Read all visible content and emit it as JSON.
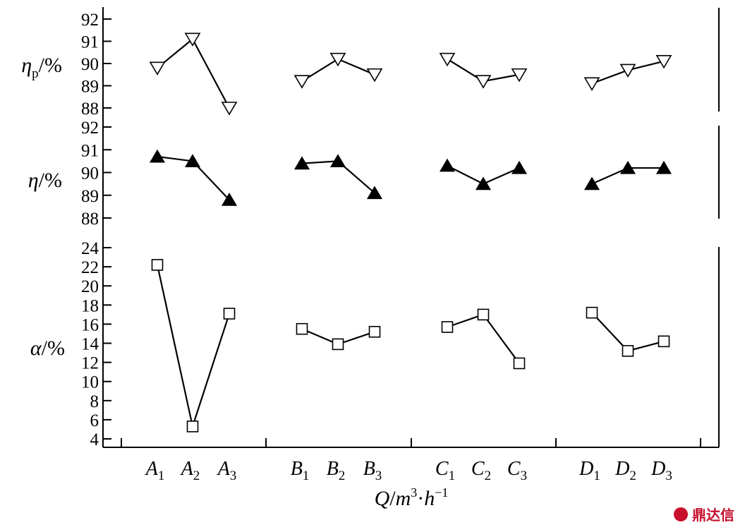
{
  "chart_data": [
    {
      "type": "line",
      "panel": "top",
      "ylabel": {
        "main": "η",
        "sub": "p",
        "tail": "/%"
      },
      "ylim": [
        88,
        92
      ],
      "yticks": [
        88,
        89,
        90,
        91,
        92
      ],
      "marker": "triangle-down-open",
      "series": [
        {
          "group": "A",
          "values": [
            89.8,
            91.1,
            88.0
          ]
        },
        {
          "group": "B",
          "values": [
            89.2,
            90.2,
            89.5
          ]
        },
        {
          "group": "C",
          "values": [
            90.2,
            89.2,
            89.5
          ]
        },
        {
          "group": "D",
          "values": [
            89.1,
            89.7,
            90.1
          ]
        }
      ]
    },
    {
      "type": "line",
      "panel": "middle",
      "ylabel": {
        "main": "η",
        "sub": "",
        "tail": "/%"
      },
      "ylim": [
        88,
        92
      ],
      "yticks": [
        88,
        89,
        90,
        91,
        92
      ],
      "marker": "triangle-up-filled",
      "series": [
        {
          "group": "A",
          "values": [
            90.7,
            90.5,
            88.8
          ]
        },
        {
          "group": "B",
          "values": [
            90.4,
            90.5,
            89.1
          ]
        },
        {
          "group": "C",
          "values": [
            90.3,
            89.5,
            90.2
          ]
        },
        {
          "group": "D",
          "values": [
            89.5,
            90.2,
            90.2
          ]
        }
      ]
    },
    {
      "type": "line",
      "panel": "bottom",
      "ylabel": {
        "main": "α",
        "sub": "",
        "tail": "/%"
      },
      "ylim": [
        4,
        24
      ],
      "yticks": [
        4,
        6,
        8,
        10,
        12,
        14,
        16,
        18,
        20,
        22,
        24
      ],
      "marker": "square-open",
      "series": [
        {
          "group": "A",
          "values": [
            22.2,
            5.3,
            17.1
          ]
        },
        {
          "group": "B",
          "values": [
            15.5,
            13.9,
            15.2
          ]
        },
        {
          "group": "C",
          "values": [
            15.7,
            17.0,
            11.9
          ]
        },
        {
          "group": "D",
          "values": [
            17.2,
            13.2,
            14.2
          ]
        }
      ]
    }
  ],
  "categories": [
    {
      "letter": "A",
      "sub": "1"
    },
    {
      "letter": "A",
      "sub": "2"
    },
    {
      "letter": "A",
      "sub": "3"
    },
    {
      "letter": "B",
      "sub": "1"
    },
    {
      "letter": "B",
      "sub": "2"
    },
    {
      "letter": "B",
      "sub": "3"
    },
    {
      "letter": "C",
      "sub": "1"
    },
    {
      "letter": "C",
      "sub": "2"
    },
    {
      "letter": "C",
      "sub": "3"
    },
    {
      "letter": "D",
      "sub": "1"
    },
    {
      "letter": "D",
      "sub": "2"
    },
    {
      "letter": "D",
      "sub": "3"
    }
  ],
  "xlabel": {
    "q": "Q",
    "slash": "/",
    "m": "m",
    "m_exp": "3",
    "dot": "·",
    "h": "h",
    "h_exp": "−1"
  },
  "watermark": "鼎达信",
  "colors": {
    "axis": "#000000",
    "marker_fill": "#000000",
    "watermark": "#c8102e"
  }
}
